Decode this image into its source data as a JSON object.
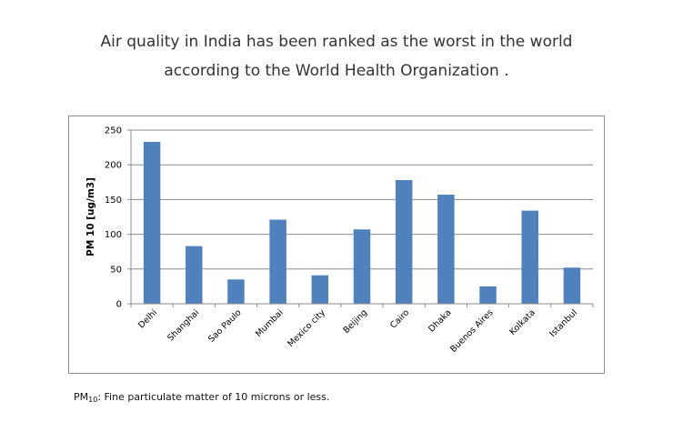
{
  "headline": {
    "line1": "Air quality in India has been ranked as the worst in the world",
    "line2": "according to the World Health Organization ."
  },
  "footnote": {
    "abbr": "PM",
    "subscript": "10",
    "text": ": Fine particulate matter of 10 microns or less."
  },
  "chart_data": {
    "type": "bar",
    "categories": [
      "Delhi",
      "Shanghai",
      "Sao Paulo",
      "Mumbai",
      "Mexico city",
      "Beijing",
      "Cairo",
      "Dhaka",
      "Buenos Aires",
      "Kolkata",
      "Istanbul"
    ],
    "values": [
      233,
      83,
      35,
      121,
      41,
      107,
      178,
      157,
      25,
      134,
      52
    ],
    "title": "",
    "xlabel": "",
    "ylabel": "PM 10 [ug/m3]",
    "ylim": [
      0,
      250
    ],
    "yticks": [
      0,
      50,
      100,
      150,
      200,
      250
    ],
    "grid": true,
    "legend": "none",
    "bar_color": "#4f81bd",
    "grid_color": "#8c8c8c"
  }
}
